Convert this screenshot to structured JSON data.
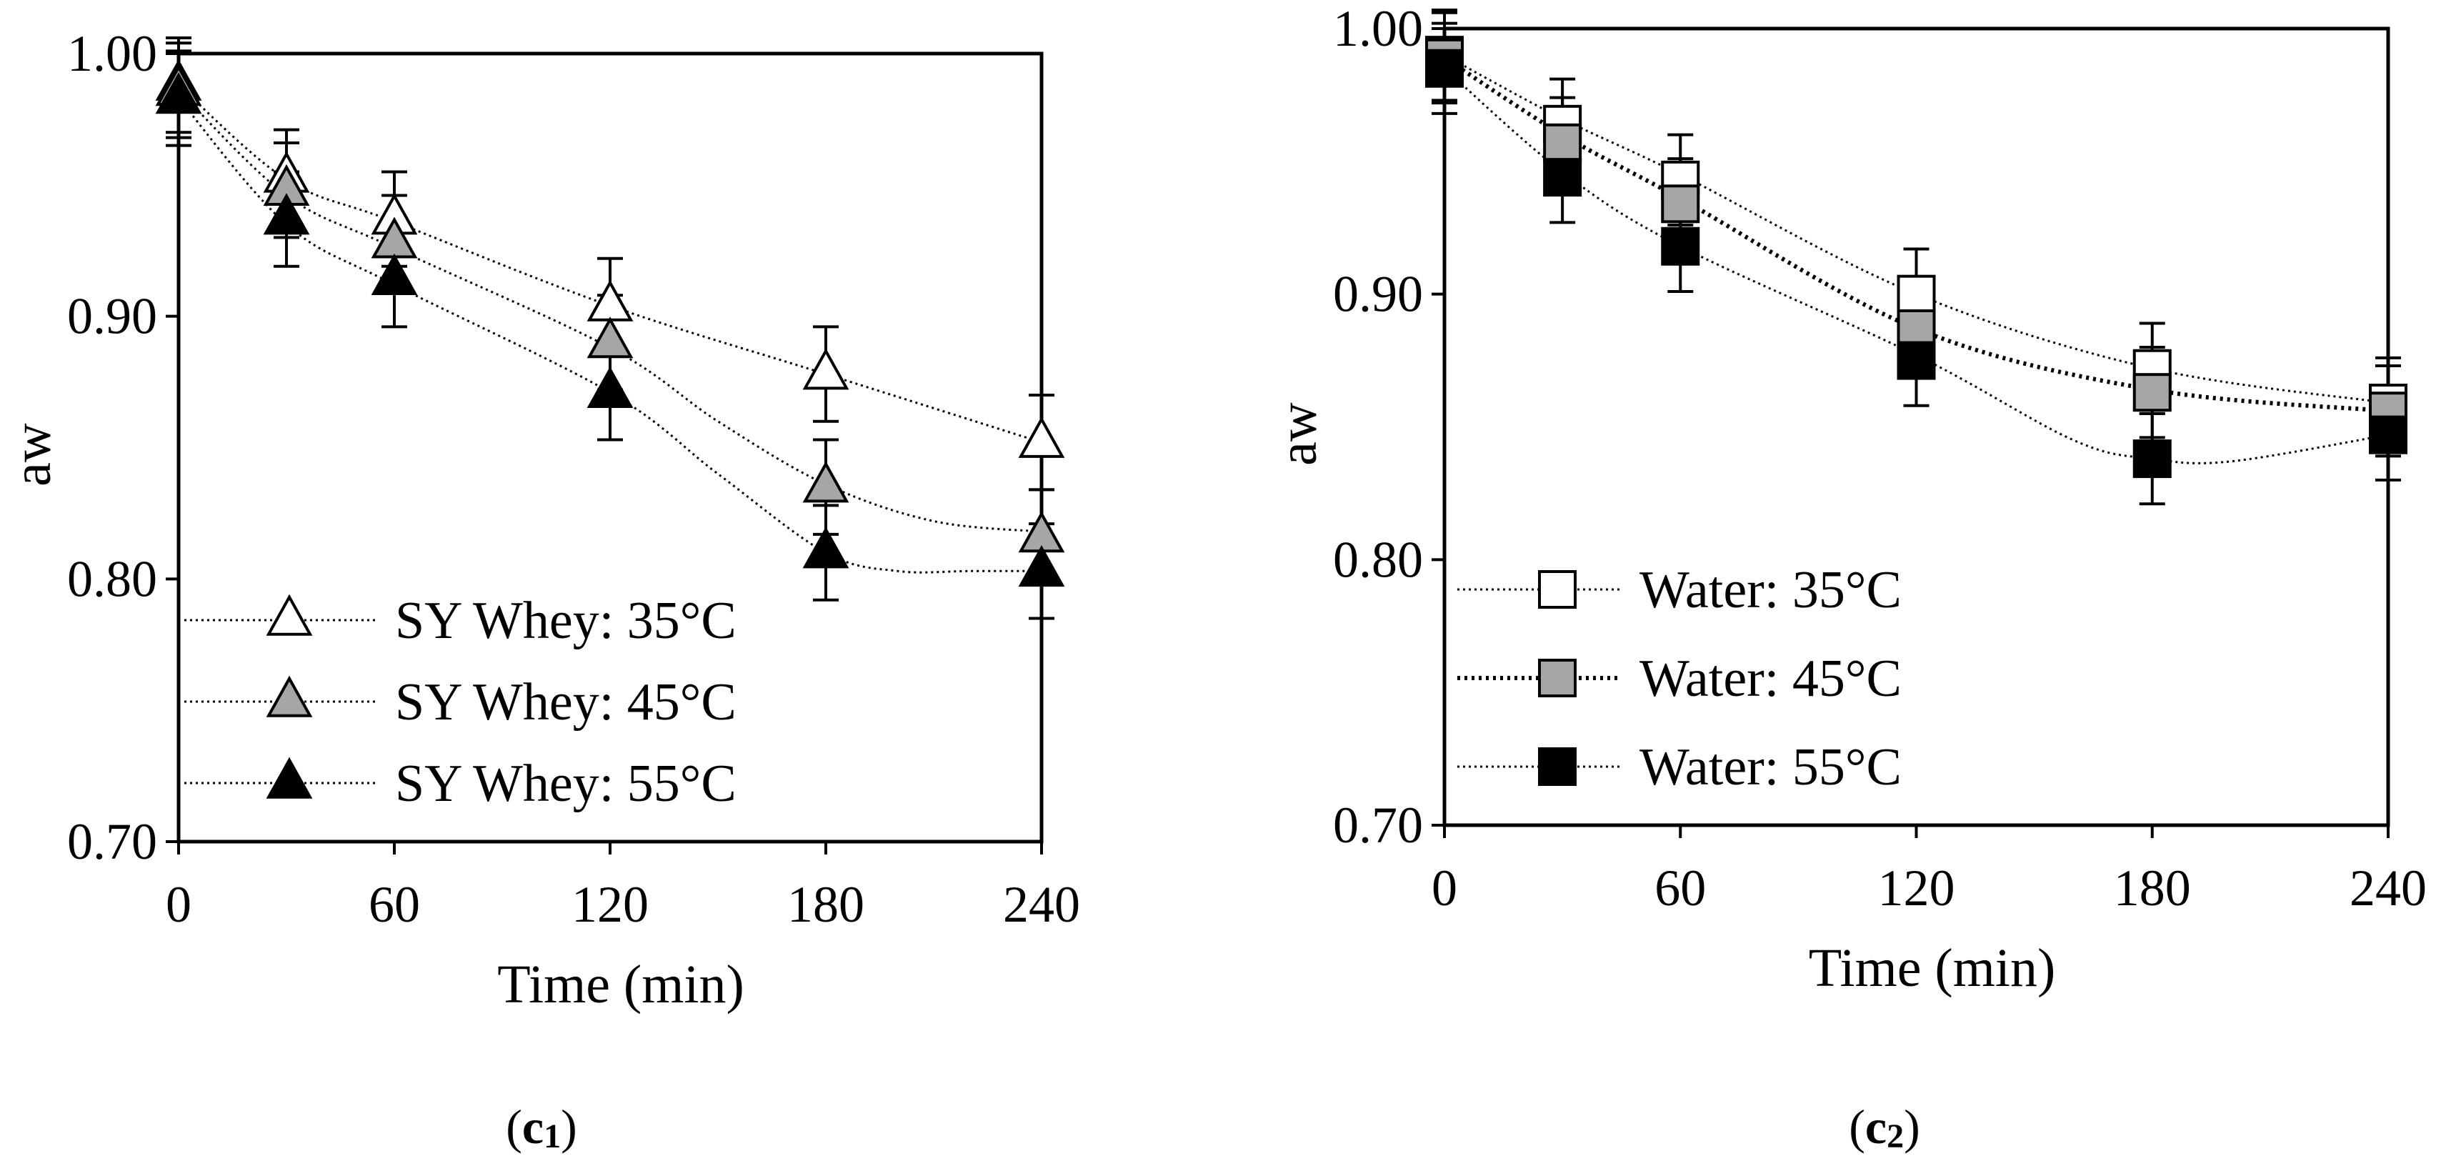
{
  "chart_data": [
    {
      "type": "line",
      "panel_label_letter": "c",
      "panel_label_sub": "1",
      "xlabel": "Time (min)",
      "ylabel": "aw",
      "ylim": [
        0.7,
        1.0
      ],
      "xlim": [
        0,
        240
      ],
      "xticks": [
        "0",
        "60",
        "120",
        "180",
        "240"
      ],
      "yticks": [
        "0.70",
        "0.80",
        "0.90",
        "1.00"
      ],
      "grid": false,
      "legend_position": "bottom-left",
      "marker": "triangle",
      "x": [
        0,
        30,
        60,
        120,
        180,
        240
      ],
      "series": [
        {
          "name": "SY Whey: 35°C",
          "fill": "#ffffff",
          "values": [
            0.988,
            0.953,
            0.937,
            0.904,
            0.878,
            0.852
          ],
          "error": [
            0.018,
            0.018,
            0.018,
            0.018,
            0.018,
            0.018
          ],
          "curve": [
            [
              0,
              0.988
            ],
            [
              30,
              0.952
            ],
            [
              60,
              0.936
            ],
            [
              120,
              0.904
            ],
            [
              180,
              0.878
            ],
            [
              240,
              0.852
            ]
          ]
        },
        {
          "name": "SY Whey: 45°C",
          "fill": "#a6a6a6",
          "values": [
            0.986,
            0.948,
            0.928,
            0.89,
            0.835,
            0.816
          ],
          "error": [
            0.018,
            0.018,
            0.018,
            0.018,
            0.018,
            0.018
          ],
          "curve": [
            [
              0,
              0.986
            ],
            [
              30,
              0.946
            ],
            [
              60,
              0.926
            ],
            [
              120,
              0.888
            ],
            [
              150,
              0.86
            ],
            [
              180,
              0.836
            ],
            [
              210,
              0.822
            ],
            [
              240,
              0.818
            ]
          ]
        },
        {
          "name": "SY Whey: 55°C",
          "fill": "#000000",
          "values": [
            0.983,
            0.937,
            0.914,
            0.871,
            0.81,
            0.803
          ],
          "error": [
            0.018,
            0.018,
            0.018,
            0.018,
            0.018,
            0.018
          ],
          "curve": [
            [
              0,
              0.983
            ],
            [
              30,
              0.935
            ],
            [
              60,
              0.912
            ],
            [
              120,
              0.871
            ],
            [
              150,
              0.84
            ],
            [
              180,
              0.81
            ],
            [
              200,
              0.803
            ],
            [
              220,
              0.803
            ],
            [
              240,
              0.803
            ]
          ]
        }
      ]
    },
    {
      "type": "line",
      "panel_label_letter": "c",
      "panel_label_sub": "2",
      "xlabel": "Time (min)",
      "ylabel": "aw",
      "ylim": [
        0.7,
        1.0
      ],
      "xlim": [
        0,
        240
      ],
      "xticks": [
        "0",
        "60",
        "120",
        "180",
        "240"
      ],
      "yticks": [
        "0.70",
        "0.80",
        "0.90",
        "1.00"
      ],
      "grid": false,
      "legend_position": "bottom-left",
      "marker": "square",
      "x": [
        0,
        30,
        60,
        120,
        180,
        240
      ],
      "series": [
        {
          "name": "Water: 35°C",
          "fill": "#ffffff",
          "values": [
            0.99,
            0.964,
            0.943,
            0.9,
            0.872,
            0.859
          ],
          "error": [
            0.017,
            0.017,
            0.017,
            0.017,
            0.017,
            0.017
          ],
          "curve": [
            [
              0,
              0.99
            ],
            [
              30,
              0.966
            ],
            [
              60,
              0.945
            ],
            [
              120,
              0.9
            ],
            [
              180,
              0.872
            ],
            [
              240,
              0.859
            ]
          ]
        },
        {
          "name": "Water: 45°C",
          "fill": "#a6a6a6",
          "values": [
            0.989,
            0.957,
            0.934,
            0.887,
            0.863,
            0.856
          ],
          "error": [
            0.017,
            0.017,
            0.017,
            0.017,
            0.017,
            0.017
          ],
          "curve": [
            [
              0,
              0.989
            ],
            [
              30,
              0.96
            ],
            [
              60,
              0.936
            ],
            [
              120,
              0.887
            ],
            [
              180,
              0.864
            ],
            [
              240,
              0.856
            ]
          ]
        },
        {
          "name": "Water: 55°C",
          "fill": "#000000",
          "values": [
            0.985,
            0.944,
            0.918,
            0.875,
            0.838,
            0.847
          ],
          "error": [
            0.017,
            0.017,
            0.017,
            0.017,
            0.017,
            0.017
          ],
          "curve": [
            [
              0,
              0.985
            ],
            [
              30,
              0.946
            ],
            [
              60,
              0.918
            ],
            [
              120,
              0.877
            ],
            [
              160,
              0.845
            ],
            [
              180,
              0.838
            ],
            [
              200,
              0.837
            ],
            [
              240,
              0.847
            ]
          ]
        }
      ]
    }
  ]
}
